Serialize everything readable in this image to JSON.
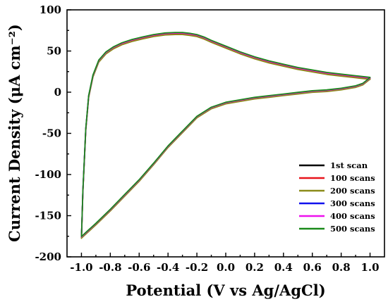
{
  "chart_data": {
    "type": "line",
    "title": "",
    "xlabel": "Potential (V vs Ag/AgCl)",
    "ylabel": "Current Density (μA cm⁻²)",
    "xlim": [
      -1.1,
      1.1
    ],
    "ylim": [
      -200,
      100
    ],
    "x_ticks": [
      "-1.0",
      "-0.8",
      "-0.6",
      "-0.4",
      "-0.2",
      "0.0",
      "0.2",
      "0.4",
      "0.6",
      "0.8",
      "1.0"
    ],
    "y_ticks": [
      "100",
      "50",
      "0",
      "-50",
      "-100",
      "-150",
      "-200"
    ],
    "legend_position": "bottom-right",
    "grid": false,
    "cycle_upper_branch": {
      "x": [
        -1.0,
        -0.99,
        -0.97,
        -0.95,
        -0.92,
        -0.88,
        -0.83,
        -0.78,
        -0.72,
        -0.65,
        -0.58,
        -0.5,
        -0.42,
        -0.35,
        -0.3,
        -0.25,
        -0.2,
        -0.15,
        -0.1,
        0.0,
        0.1,
        0.2,
        0.3,
        0.4,
        0.5,
        0.6,
        0.7,
        0.8,
        0.9,
        1.0
      ],
      "y": [
        -176,
        -120,
        -45,
        -5,
        20,
        38,
        48,
        54,
        59,
        63,
        66,
        69,
        71,
        71.5,
        71.5,
        70.5,
        69,
        66,
        62,
        55,
        48,
        42,
        37,
        33,
        29,
        26,
        23,
        21,
        19,
        17
      ]
    },
    "cycle_lower_branch": {
      "x": [
        1.0,
        0.95,
        0.9,
        0.8,
        0.7,
        0.6,
        0.5,
        0.4,
        0.3,
        0.2,
        0.1,
        0.0,
        -0.1,
        -0.2,
        -0.3,
        -0.35,
        -0.4,
        -0.5,
        -0.6,
        -0.7,
        -0.8,
        -0.9,
        -0.95,
        -1.0
      ],
      "y": [
        17,
        10,
        7,
        4,
        2,
        1,
        -1,
        -3,
        -5,
        -7,
        -10,
        -13,
        -19,
        -30,
        -48,
        -57,
        -66,
        -87,
        -107,
        -125,
        -143,
        -160,
        -168,
        -176
      ]
    },
    "series": [
      {
        "name": "1st scan",
        "color": "#000000",
        "offset": 0.0
      },
      {
        "name": "100 scans",
        "color": "#e8141b",
        "offset": -1.0
      },
      {
        "name": "200 scans",
        "color": "#8b8b1a",
        "offset": -1.5
      },
      {
        "name": "300 scans",
        "color": "#1111ee",
        "offset": 0.6
      },
      {
        "name": "400 scans",
        "color": "#ee11ee",
        "offset": 0.3
      },
      {
        "name": "500 scans",
        "color": "#1a8a1a",
        "offset": 1.0
      }
    ]
  }
}
